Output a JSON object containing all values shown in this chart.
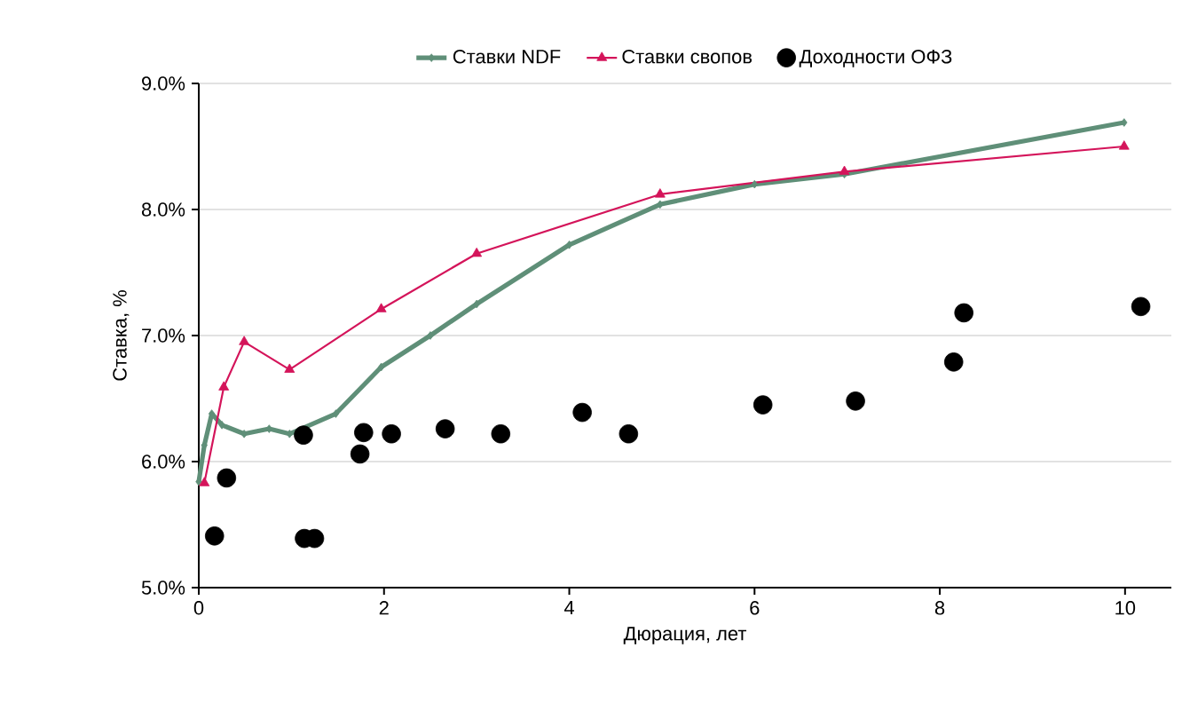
{
  "chart_data": {
    "type": "line",
    "xlabel": "Дюрация, лет",
    "ylabel": "Ставка, %",
    "xlim": [
      0,
      10.5
    ],
    "xticks": [
      0,
      2,
      4,
      6,
      8,
      10
    ],
    "ylim": [
      5,
      9
    ],
    "yticks": [
      {
        "value": 5,
        "label": "5.0%"
      },
      {
        "value": 6,
        "label": "6.0%"
      },
      {
        "value": 7,
        "label": "7.0%"
      },
      {
        "value": 8,
        "label": "8.0%"
      },
      {
        "value": 9,
        "label": "9.0%"
      }
    ],
    "grid": "y",
    "legend": "top",
    "series": [
      {
        "name": "Ставки NDF",
        "color": "#5f8f78",
        "marker": "diamond",
        "x": [
          0,
          0.06,
          0.14,
          0.25,
          0.49,
          0.76,
          0.98,
          1.48,
          1.97,
          2.5,
          3.0,
          4.0,
          4.98,
          6.0,
          6.97,
          9.99
        ],
        "values": [
          5.84,
          6.13,
          6.38,
          6.29,
          6.22,
          6.26,
          6.22,
          6.38,
          6.75,
          7.0,
          7.25,
          7.72,
          8.04,
          8.2,
          8.28,
          8.69
        ]
      },
      {
        "name": "Ставки свопов",
        "color": "#d4145a",
        "marker": "triangle",
        "x": [
          0.06,
          0.27,
          0.49,
          0.98,
          1.97,
          3.0,
          4.98,
          6.97,
          9.99
        ],
        "values": [
          5.83,
          6.59,
          6.95,
          6.73,
          7.21,
          7.65,
          8.12,
          8.3,
          8.5
        ]
      },
      {
        "name": "Доходности ОФЗ",
        "type": "scatter",
        "color": "#000000",
        "marker": "circle",
        "x": [
          0.17,
          0.3,
          1.13,
          1.14,
          1.25,
          1.74,
          1.78,
          2.08,
          2.66,
          3.26,
          4.14,
          4.64,
          6.09,
          7.09,
          8.15,
          8.26,
          10.17
        ],
        "values": [
          5.41,
          5.87,
          6.21,
          5.39,
          5.39,
          6.06,
          6.23,
          6.22,
          6.26,
          6.22,
          6.39,
          6.22,
          6.45,
          6.48,
          6.79,
          7.18,
          7.23
        ]
      }
    ]
  }
}
